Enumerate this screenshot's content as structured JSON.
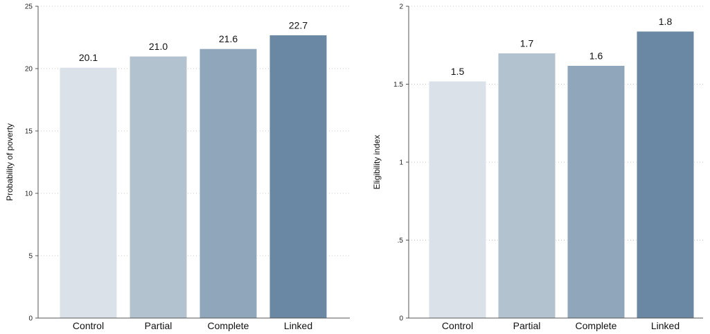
{
  "chart_data": [
    {
      "type": "bar",
      "categories": [
        "Control",
        "Partial",
        "Complete",
        "Linked"
      ],
      "values": [
        20.1,
        21.0,
        21.6,
        22.7
      ],
      "data_labels": [
        "20.1",
        "21.0",
        "21.6",
        "22.7"
      ],
      "title": "",
      "xlabel": "",
      "ylabel": "Probability of poverty",
      "ylim": [
        0,
        25
      ],
      "yticks": [
        0,
        5,
        10,
        15,
        20,
        25
      ],
      "ytick_labels": [
        "0",
        "5",
        "10",
        "15",
        "20",
        "25"
      ],
      "grid": true,
      "colors": [
        "#dbe1e9",
        "#b3c2cf",
        "#90a6ba",
        "#6a88a3"
      ]
    },
    {
      "type": "bar",
      "categories": [
        "Control",
        "Partial",
        "Complete",
        "Linked"
      ],
      "values": [
        1.52,
        1.7,
        1.62,
        1.84
      ],
      "data_labels": [
        "1.5",
        "1.7",
        "1.6",
        "1.8"
      ],
      "title": "",
      "xlabel": "",
      "ylabel": "Eligibility index",
      "ylim": [
        0,
        2
      ],
      "yticks": [
        0,
        0.5,
        1,
        1.5,
        2
      ],
      "ytick_labels": [
        "0",
        ".5",
        "1",
        "1.5",
        "2"
      ],
      "grid": true,
      "colors": [
        "#dbe1e9",
        "#b3c2cf",
        "#90a6ba",
        "#6a88a3"
      ]
    }
  ]
}
